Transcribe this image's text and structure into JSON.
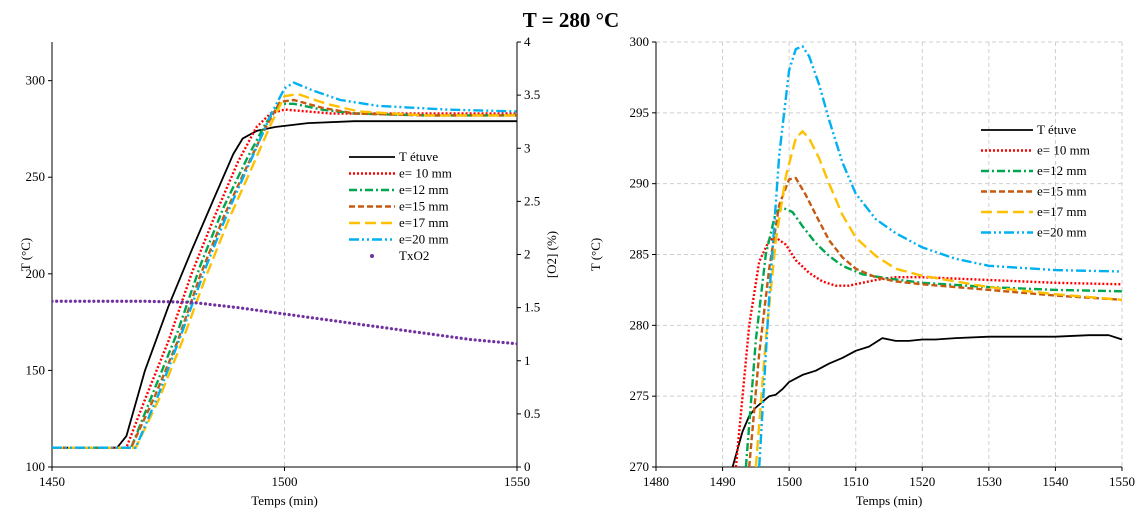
{
  "title": "T = 280 °C",
  "chart_data": [
    {
      "type": "line",
      "xlabel": "Temps (min)",
      "ylabel": "T (°C)",
      "y2label": "[O2] (%)",
      "xlim": [
        1450,
        1550
      ],
      "ylim": [
        100,
        320
      ],
      "y2lim": [
        0,
        4
      ],
      "xticks": [
        "1450",
        "1500",
        "1550"
      ],
      "yticks": [
        "100",
        "150",
        "200",
        "250",
        "300"
      ],
      "y2ticks": [
        "0",
        "0.5",
        "1",
        "1.5",
        "2",
        "2.5",
        "3",
        "3.5",
        "4"
      ],
      "grid": "vertical dashed",
      "legend_position": "center-right",
      "series": [
        {
          "name": "T étuve",
          "color": "#000000",
          "dash": "solid",
          "axis": "left",
          "x": [
            1450,
            1464,
            1466,
            1470,
            1475,
            1480,
            1485,
            1489,
            1491,
            1494,
            1498,
            1505,
            1515,
            1550
          ],
          "y": [
            110,
            110,
            116,
            150,
            183,
            212,
            240,
            262,
            270,
            274,
            276,
            278,
            279,
            279
          ]
        },
        {
          "name": "e= 10 mm",
          "color": "#ff0000",
          "dash": "dot",
          "axis": "left",
          "x": [
            1450,
            1466,
            1470,
            1475,
            1480,
            1485,
            1490,
            1494,
            1497,
            1500,
            1505,
            1510,
            1520,
            1550
          ],
          "y": [
            110,
            110,
            135,
            165,
            200,
            230,
            258,
            276,
            283,
            285,
            284,
            283,
            283,
            283
          ]
        },
        {
          "name": "e=12 mm",
          "color": "#00a650",
          "dash": "dashdot",
          "axis": "left",
          "x": [
            1450,
            1467,
            1472,
            1477,
            1482,
            1487,
            1492,
            1496,
            1499,
            1502,
            1508,
            1515,
            1530,
            1550
          ],
          "y": [
            110,
            110,
            140,
            170,
            205,
            235,
            260,
            278,
            288,
            288,
            285,
            283,
            282,
            282
          ]
        },
        {
          "name": "e=15 mm",
          "color": "#c55a11",
          "dash": "dash",
          "axis": "left",
          "x": [
            1450,
            1467,
            1472,
            1477,
            1482,
            1487,
            1492,
            1496,
            1499,
            1502,
            1508,
            1515,
            1530,
            1550
          ],
          "y": [
            110,
            110,
            136,
            165,
            200,
            230,
            256,
            276,
            289,
            290,
            286,
            283,
            282,
            282
          ]
        },
        {
          "name": "e=17 mm",
          "color": "#ffc000",
          "dash": "longdash",
          "axis": "left",
          "x": [
            1450,
            1468,
            1473,
            1478,
            1483,
            1488,
            1493,
            1497,
            1500,
            1503,
            1509,
            1516,
            1530,
            1550
          ],
          "y": [
            110,
            110,
            135,
            165,
            198,
            228,
            255,
            277,
            292,
            293,
            288,
            284,
            282,
            282
          ]
        },
        {
          "name": "e=20 mm",
          "color": "#00b0f0",
          "dash": "dashdotdot",
          "axis": "left",
          "x": [
            1450,
            1468,
            1473,
            1478,
            1483,
            1488,
            1493,
            1497,
            1500,
            1502,
            1506,
            1512,
            1520,
            1535,
            1550
          ],
          "y": [
            110,
            110,
            138,
            170,
            203,
            233,
            260,
            282,
            296,
            299,
            295,
            290,
            287,
            285,
            284
          ]
        },
        {
          "name": "TxO2",
          "color": "#7030a0",
          "dash": "dots",
          "axis": "right",
          "x": [
            1450,
            1460,
            1470,
            1480,
            1490,
            1500,
            1510,
            1520,
            1530,
            1540,
            1550
          ],
          "y": [
            1.56,
            1.56,
            1.56,
            1.55,
            1.5,
            1.44,
            1.38,
            1.32,
            1.26,
            1.2,
            1.16
          ]
        }
      ]
    },
    {
      "type": "line",
      "xlabel": "Temps (min)",
      "ylabel": "T (°C)",
      "xlim": [
        1480,
        1550
      ],
      "ylim": [
        270,
        300
      ],
      "xticks": [
        "1480",
        "1490",
        "1500",
        "1510",
        "1520",
        "1530",
        "1540",
        "1550"
      ],
      "yticks": [
        "270",
        "275",
        "280",
        "285",
        "290",
        "295",
        "300"
      ],
      "grid": "dashed",
      "legend_position": "top-right",
      "series": [
        {
          "name": "T étuve",
          "color": "#000000",
          "dash": "solid",
          "x": [
            1491.5,
            1493,
            1494,
            1495,
            1496,
            1497,
            1498,
            1499,
            1500,
            1502,
            1504,
            1506,
            1508,
            1510,
            1512,
            1514,
            1516,
            1518,
            1520,
            1522,
            1525,
            1530,
            1535,
            1540,
            1545,
            1548,
            1550
          ],
          "y": [
            270,
            272.5,
            273.6,
            274.2,
            274.6,
            275,
            275.1,
            275.5,
            276.0,
            276.5,
            276.8,
            277.3,
            277.7,
            278.2,
            278.5,
            279.1,
            278.9,
            278.9,
            279.0,
            279.0,
            279.1,
            279.2,
            279.2,
            279.2,
            279.3,
            279.3,
            279.0
          ]
        },
        {
          "name": "e= 10 mm",
          "color": "#ff0000",
          "dash": "dot",
          "x": [
            1492,
            1494,
            1495.5,
            1497,
            1498,
            1499.5,
            1501,
            1503,
            1505,
            1507,
            1509,
            1511,
            1513,
            1516,
            1520,
            1530,
            1540,
            1550
          ],
          "y": [
            270,
            280,
            284.5,
            286,
            286.2,
            285.7,
            284.6,
            283.7,
            283.1,
            282.8,
            282.8,
            283.0,
            283.2,
            283.4,
            283.4,
            283.2,
            283.0,
            282.9
          ]
        },
        {
          "name": "e=12 mm",
          "color": "#00a650",
          "dash": "dashdot",
          "x": [
            1493.5,
            1495,
            1496.5,
            1498,
            1499,
            1500.5,
            1502,
            1504,
            1506,
            1508,
            1511,
            1515,
            1520,
            1530,
            1540,
            1550
          ],
          "y": [
            270,
            279,
            285,
            288,
            288.3,
            288.0,
            287.0,
            285.8,
            284.9,
            284.2,
            283.6,
            283.3,
            283.0,
            282.7,
            282.5,
            282.4
          ]
        },
        {
          "name": "e=15 mm",
          "color": "#c55a11",
          "dash": "dash",
          "x": [
            1494,
            1495.5,
            1497,
            1498.5,
            1500,
            1501,
            1502.5,
            1504,
            1506,
            1508,
            1510,
            1513,
            1516,
            1520,
            1530,
            1540,
            1550
          ],
          "y": [
            270,
            278,
            284,
            288.5,
            290.3,
            290.4,
            289.2,
            287.8,
            286.0,
            284.8,
            284.0,
            283.4,
            283.1,
            282.9,
            282.5,
            282.1,
            281.8
          ]
        },
        {
          "name": "e=17 mm",
          "color": "#ffc000",
          "dash": "longdash",
          "x": [
            1495,
            1496.5,
            1498,
            1499.5,
            1501,
            1502,
            1503,
            1504.5,
            1506,
            1508,
            1510,
            1513,
            1516,
            1520,
            1530,
            1540,
            1550
          ],
          "y": [
            270,
            279,
            286,
            290.5,
            293.2,
            293.7,
            293.2,
            291.8,
            290.0,
            287.8,
            286.2,
            284.9,
            284.0,
            283.5,
            282.7,
            282.2,
            281.8
          ]
        },
        {
          "name": "e=20 mm",
          "color": "#00b0f0",
          "dash": "dashdotdot",
          "x": [
            1495.5,
            1497,
            1498.5,
            1500,
            1501,
            1502,
            1503,
            1504.5,
            1506,
            1508,
            1510,
            1513,
            1516,
            1520,
            1525,
            1530,
            1540,
            1550
          ],
          "y": [
            270,
            282,
            292,
            298,
            299.5,
            299.7,
            299.0,
            297.0,
            294.5,
            291.5,
            289.3,
            287.5,
            286.5,
            285.5,
            284.7,
            284.2,
            283.9,
            283.8
          ]
        }
      ]
    }
  ]
}
